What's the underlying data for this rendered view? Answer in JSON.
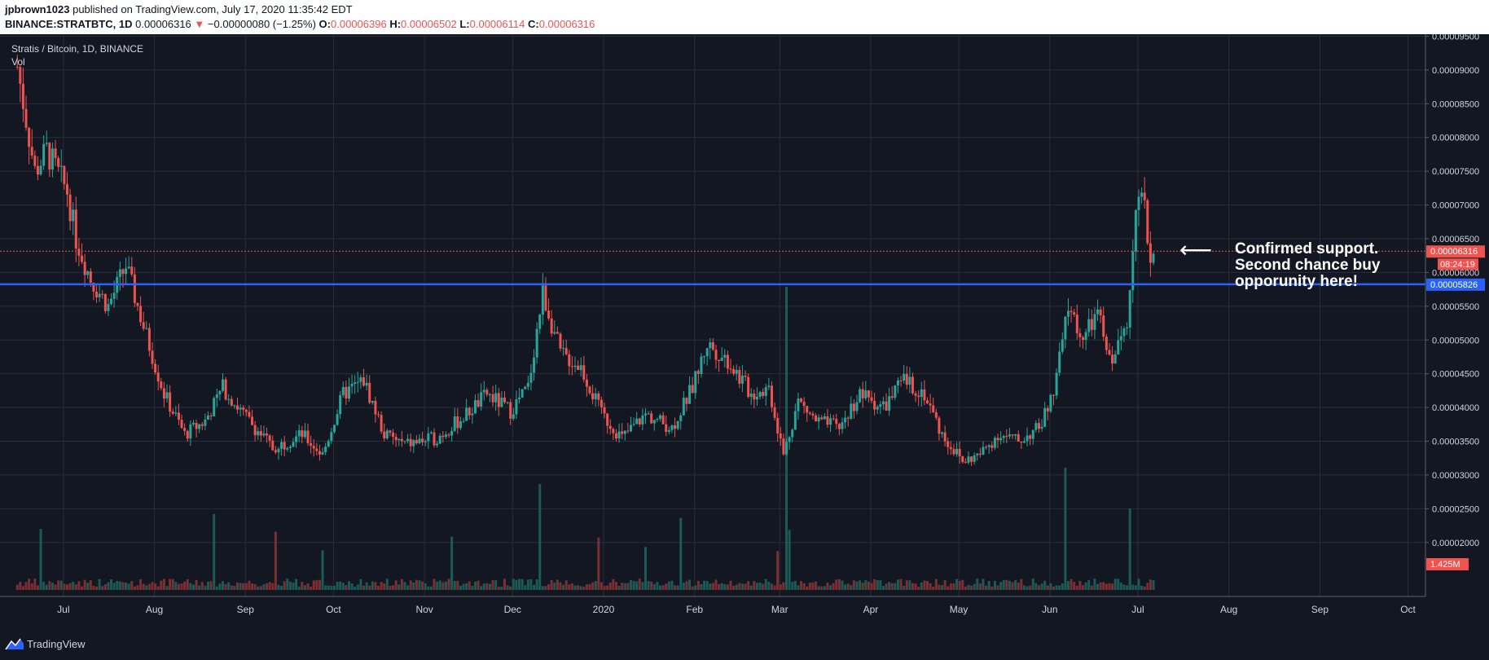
{
  "header": {
    "author": "jpbrown1023",
    "published": "published on TradingView.com, July 17, 2020 11:35:42 EDT",
    "symbol_line": "BINANCE:STRATBTC, 1D",
    "last": "0.00006316",
    "change": "−0.00000080 (−1.25%)",
    "o_label": "O:",
    "o": "0.00006396",
    "h_label": "H:",
    "h": "0.00006502",
    "l_label": "L:",
    "l": "0.00006114",
    "c_label": "C:",
    "c": "0.00006316"
  },
  "legend": {
    "series": "Stratis / Bitcoin, 1D, BINANCE",
    "vol": "Vol"
  },
  "annotation": {
    "line1": "Confirmed support.",
    "line2": "Second chance buy",
    "line3": "opporunity here!",
    "arrow": "⟵"
  },
  "footer": {
    "brand": "TradingView"
  },
  "colors": {
    "background": "#131722",
    "grid": "#2a2e39",
    "up": "#26a69a",
    "down": "#ef5350",
    "support": "#2962ff",
    "vol_up": "#1b5a55",
    "vol_down": "#7a2f32"
  },
  "chart_data": {
    "type": "candlestick",
    "y_range": [
      1.78e-05,
      9.53e-05
    ],
    "y_ticks": [
      "0.00009500",
      "0.00009000",
      "0.00008500",
      "0.00008000",
      "0.00007500",
      "0.00007000",
      "0.00006500",
      "0.00006000",
      "0.00005500",
      "0.00005000",
      "0.00004500",
      "0.00004000",
      "0.00003500",
      "0.00003000",
      "0.00002500",
      "0.00002000"
    ],
    "x_labels": [
      "Jul",
      "Aug",
      "Sep",
      "Oct",
      "Nov",
      "Dec",
      "2020",
      "Feb",
      "Mar",
      "Apr",
      "May",
      "Jun",
      "Jul",
      "Aug",
      "Sep",
      "Oct"
    ],
    "last_price_label": "0.00006316",
    "countdown_label": "08:24:19",
    "support_price": 5.826e-05,
    "support_label": "0.00005826",
    "volume_label": "1.425M",
    "closes": [
      {
        "date": "2019-06-25",
        "close": 9.05e-05
      },
      {
        "date": "2019-07-01",
        "close": 7.5e-05
      },
      {
        "date": "2019-07-05",
        "close": 7.8e-05
      },
      {
        "date": "2019-07-12",
        "close": 7.2e-05
      },
      {
        "date": "2019-07-15",
        "close": 6.5e-05
      },
      {
        "date": "2019-07-20",
        "close": 5.9e-05
      },
      {
        "date": "2019-07-26",
        "close": 5.5e-05
      },
      {
        "date": "2019-08-01",
        "close": 6.1e-05
      },
      {
        "date": "2019-08-07",
        "close": 5.2e-05
      },
      {
        "date": "2019-08-14",
        "close": 4.2e-05
      },
      {
        "date": "2019-08-21",
        "close": 3.6e-05
      },
      {
        "date": "2019-08-28",
        "close": 3.8e-05
      },
      {
        "date": "2019-09-03",
        "close": 4.3e-05
      },
      {
        "date": "2019-09-10",
        "close": 3.9e-05
      },
      {
        "date": "2019-09-20",
        "close": 3.4e-05
      },
      {
        "date": "2019-09-30",
        "close": 3.6e-05
      },
      {
        "date": "2019-10-07",
        "close": 3.3e-05
      },
      {
        "date": "2019-10-14",
        "close": 4.2e-05
      },
      {
        "date": "2019-10-21",
        "close": 4.4e-05
      },
      {
        "date": "2019-10-28",
        "close": 3.6e-05
      },
      {
        "date": "2019-11-04",
        "close": 3.45e-05
      },
      {
        "date": "2019-11-15",
        "close": 3.55e-05
      },
      {
        "date": "2019-11-25",
        "close": 3.9e-05
      },
      {
        "date": "2019-12-02",
        "close": 4.2e-05
      },
      {
        "date": "2019-12-10",
        "close": 3.95e-05
      },
      {
        "date": "2019-12-16",
        "close": 4.3e-05
      },
      {
        "date": "2019-12-21",
        "close": 5.7e-05
      },
      {
        "date": "2019-12-27",
        "close": 4.8e-05
      },
      {
        "date": "2020-01-03",
        "close": 4.6e-05
      },
      {
        "date": "2020-01-10",
        "close": 3.9e-05
      },
      {
        "date": "2020-01-17",
        "close": 3.55e-05
      },
      {
        "date": "2020-01-25",
        "close": 3.9e-05
      },
      {
        "date": "2020-02-03",
        "close": 3.7e-05
      },
      {
        "date": "2020-02-10",
        "close": 4.3e-05
      },
      {
        "date": "2020-02-15",
        "close": 4.95e-05
      },
      {
        "date": "2020-02-22",
        "close": 4.7e-05
      },
      {
        "date": "2020-03-01",
        "close": 4.2e-05
      },
      {
        "date": "2020-03-07",
        "close": 4.3e-05
      },
      {
        "date": "2020-03-12",
        "close": 3.3e-05
      },
      {
        "date": "2020-03-17",
        "close": 4.1e-05
      },
      {
        "date": "2020-03-23",
        "close": 3.8e-05
      },
      {
        "date": "2020-03-31",
        "close": 3.7e-05
      },
      {
        "date": "2020-04-07",
        "close": 4.2e-05
      },
      {
        "date": "2020-04-15",
        "close": 4e-05
      },
      {
        "date": "2020-04-22",
        "close": 4.4e-05
      },
      {
        "date": "2020-04-29",
        "close": 4.2e-05
      },
      {
        "date": "2020-05-05",
        "close": 3.6e-05
      },
      {
        "date": "2020-05-12",
        "close": 3.2e-05
      },
      {
        "date": "2020-05-18",
        "close": 3.3e-05
      },
      {
        "date": "2020-05-24",
        "close": 3.6e-05
      },
      {
        "date": "2020-05-31",
        "close": 3.5e-05
      },
      {
        "date": "2020-06-07",
        "close": 3.7e-05
      },
      {
        "date": "2020-06-12",
        "close": 4.2e-05
      },
      {
        "date": "2020-06-17",
        "close": 5.5e-05
      },
      {
        "date": "2020-06-22",
        "close": 5e-05
      },
      {
        "date": "2020-06-27",
        "close": 5.4e-05
      },
      {
        "date": "2020-07-01",
        "close": 4.7e-05
      },
      {
        "date": "2020-07-04",
        "close": 4.9e-05
      },
      {
        "date": "2020-07-07",
        "close": 5.3e-05
      },
      {
        "date": "2020-07-09",
        "close": 6.5e-05
      },
      {
        "date": "2020-07-11",
        "close": 7.1e-05
      },
      {
        "date": "2020-07-13",
        "close": 6.9e-05
      },
      {
        "date": "2020-07-15",
        "close": 6.2e-05
      },
      {
        "date": "2020-07-17",
        "close": 6.32e-05
      }
    ]
  }
}
